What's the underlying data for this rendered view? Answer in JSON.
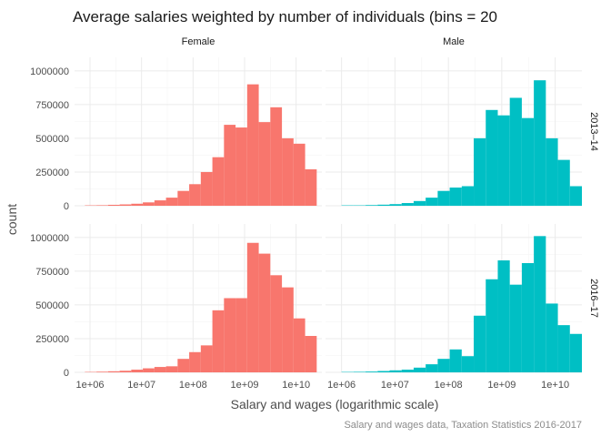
{
  "chart_data": {
    "type": "bar",
    "title": "Average salaries weighted by number of individuals (bins = 20",
    "xlabel": "Salary and wages (logarithmic scale)",
    "ylabel": "count",
    "caption": "Salary and wages data, Taxation Statistics 2016-2017",
    "x_scale": "log10",
    "xlim": [
      5.7,
      10.5
    ],
    "ylim": [
      0,
      1100000
    ],
    "x_tick_values": [
      6,
      7,
      8,
      9,
      10
    ],
    "x_tick_labels": [
      "1e+06",
      "1e+07",
      "1e+08",
      "1e+09",
      "1e+10"
    ],
    "y_tick_values": [
      0,
      250000,
      500000,
      750000,
      1000000
    ],
    "y_tick_labels": [
      "0",
      "250000",
      "500000",
      "750000",
      "1000000"
    ],
    "grid": true,
    "colors": {
      "Female": "#F8766D",
      "Male": "#00BFC4"
    },
    "col_facets": [
      "Female",
      "Male"
    ],
    "row_facets": [
      "2013–14",
      "2016–17"
    ],
    "panels": [
      {
        "col": "Female",
        "row": "2013–14",
        "bin_edges_log10": [
          5.9,
          6.125,
          6.35,
          6.575,
          6.8,
          7.025,
          7.25,
          7.475,
          7.7,
          7.925,
          8.15,
          8.375,
          8.6,
          8.825,
          9.05,
          9.275,
          9.5,
          9.725,
          9.95,
          10.175,
          10.4
        ],
        "values": [
          3000,
          4000,
          7000,
          10000,
          15000,
          25000,
          40000,
          60000,
          110000,
          160000,
          250000,
          360000,
          600000,
          580000,
          900000,
          620000,
          730000,
          500000,
          460000,
          270000
        ]
      },
      {
        "col": "Male",
        "row": "2013–14",
        "bin_edges_log10": [
          6,
          6.225,
          6.45,
          6.675,
          6.9,
          7.125,
          7.35,
          7.575,
          7.8,
          8.025,
          8.25,
          8.475,
          8.7,
          8.925,
          9.15,
          9.375,
          9.6,
          9.825,
          10.05,
          10.275,
          10.5
        ],
        "values": [
          3000,
          3000,
          5000,
          8000,
          12000,
          20000,
          35000,
          60000,
          110000,
          135000,
          145000,
          500000,
          710000,
          670000,
          800000,
          650000,
          930000,
          500000,
          340000,
          145000
        ]
      },
      {
        "col": "Female",
        "row": "2016–17",
        "bin_edges_log10": [
          5.9,
          6.125,
          6.35,
          6.575,
          6.8,
          7.025,
          7.25,
          7.475,
          7.7,
          7.925,
          8.15,
          8.375,
          8.6,
          8.825,
          9.05,
          9.275,
          9.5,
          9.725,
          9.95,
          10.175,
          10.4
        ],
        "values": [
          3000,
          5000,
          8000,
          12000,
          20000,
          30000,
          40000,
          45000,
          100000,
          150000,
          200000,
          460000,
          550000,
          550000,
          960000,
          880000,
          720000,
          630000,
          400000,
          270000
        ]
      },
      {
        "col": "Male",
        "row": "2016–17",
        "bin_edges_log10": [
          6,
          6.225,
          6.45,
          6.675,
          6.9,
          7.125,
          7.35,
          7.575,
          7.8,
          8.025,
          8.25,
          8.475,
          8.7,
          8.925,
          9.15,
          9.375,
          9.6,
          9.825,
          10.05,
          10.275,
          10.5
        ],
        "values": [
          3000,
          4000,
          6000,
          10000,
          15000,
          20000,
          35000,
          60000,
          100000,
          170000,
          120000,
          420000,
          690000,
          830000,
          650000,
          810000,
          1010000,
          510000,
          350000,
          285000
        ]
      }
    ]
  }
}
